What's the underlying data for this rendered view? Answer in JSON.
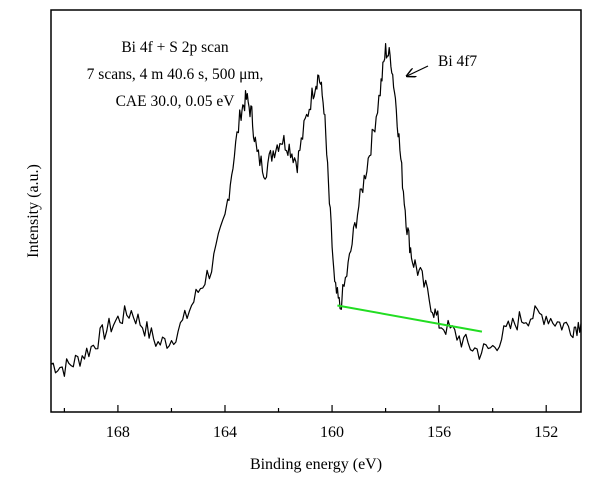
{
  "chart_data": {
    "type": "line",
    "xlabel": "Binding energy (eV)",
    "ylabel": "Intensity (a.u.)",
    "xlim": [
      170.5,
      150.7
    ],
    "ylim": [
      0,
      100
    ],
    "x_reversed": true,
    "x_ticks": [
      168,
      164,
      160,
      156,
      152
    ],
    "annotation_lines": [
      "Bi 4f + S 2p scan",
      "7 scans, 4 m 40.6 s, 500 μm,",
      "CAE 30.0, 0.05 eV"
    ],
    "peak_label": "Bi 4f7",
    "peak_label_x": 157.9,
    "peak_label_y": 90,
    "series": [
      {
        "values_x": [
          170.5,
          170.0,
          169.5,
          169.0,
          168.5,
          168.0,
          167.5,
          167.0,
          166.5,
          166.0,
          165.5,
          165.0,
          164.5,
          164.0,
          163.7,
          163.4,
          163.2,
          163.0,
          162.8,
          162.5,
          162.2,
          161.9,
          161.6,
          161.3,
          161.0,
          160.7,
          160.5,
          160.3,
          160.1,
          159.9,
          159.7,
          159.4,
          159.1,
          158.8,
          158.5,
          158.2,
          158.0,
          157.8,
          157.6,
          157.4,
          157.2,
          157.0,
          156.7,
          156.3,
          156.0,
          155.5,
          155.0,
          154.5,
          154.0,
          153.5,
          153.0,
          152.5,
          152.0,
          151.5,
          151.0,
          150.7
        ],
        "values_y": [
          12,
          11,
          13,
          16,
          20,
          23,
          25,
          21,
          17,
          18,
          23,
          30,
          36,
          48,
          62,
          75,
          78,
          74,
          64,
          60,
          65,
          68,
          66,
          62,
          72,
          80,
          84,
          76,
          52,
          31,
          26,
          36,
          48,
          58,
          68,
          80,
          90,
          88,
          76,
          60,
          46,
          38,
          34,
          27,
          22,
          20,
          17,
          15,
          16,
          20,
          23,
          24,
          24,
          22,
          21,
          22
        ]
      },
      {
        "name": "",
        "color": "#22dd22",
        "values_x": [
          159.8,
          154.4
        ],
        "values_y": [
          26.5,
          20
        ]
      }
    ]
  }
}
